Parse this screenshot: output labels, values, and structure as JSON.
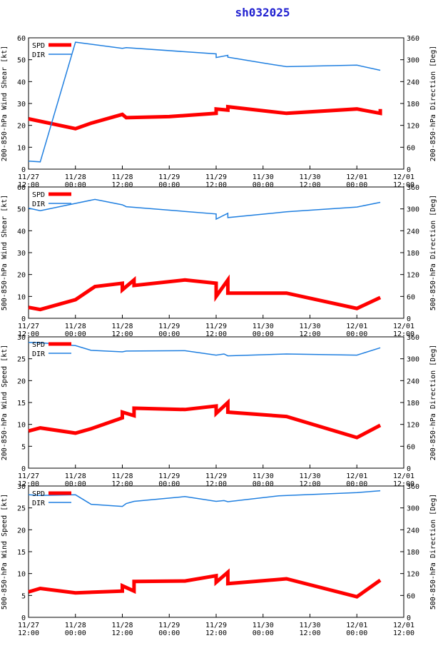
{
  "title": "sh032025",
  "colors": {
    "spd": "#ff0000",
    "dir": "#1f7fe0",
    "axis": "#000000",
    "title": "#1f1fd0"
  },
  "x_ticks": [
    [
      "11/27",
      "12:00"
    ],
    [
      "11/28",
      "00:00"
    ],
    [
      "11/28",
      "12:00"
    ],
    [
      "11/29",
      "00:00"
    ],
    [
      "11/29",
      "12:00"
    ],
    [
      "11/30",
      "00:00"
    ],
    [
      "11/30",
      "12:00"
    ],
    [
      "12/01",
      "00:00"
    ],
    [
      "12/01",
      "12:00"
    ]
  ],
  "legend": {
    "spd": "SPD",
    "dir": "DIR"
  },
  "chart_data": [
    {
      "type": "line",
      "ylabel": "200-850-hPa Wind Shear [kt]",
      "y2label": "200-850-hPa Direction [Deg]",
      "ylim": [
        0,
        60
      ],
      "yticks": [
        0,
        10,
        20,
        30,
        40,
        50,
        60
      ],
      "y2lim": [
        0,
        360
      ],
      "y2ticks": [
        0,
        60,
        120,
        180,
        240,
        300,
        360
      ],
      "xlim": [
        0,
        96
      ],
      "series": [
        {
          "name": "SPD",
          "axis": "left",
          "x": [
            0,
            12,
            16,
            24,
            25,
            36,
            48,
            48,
            51,
            51,
            66,
            84,
            90,
            90
          ],
          "y": [
            23,
            18.5,
            21,
            25,
            23.5,
            24,
            25.5,
            27.5,
            27,
            28.5,
            25.5,
            27.5,
            25.5,
            27.5
          ]
        },
        {
          "name": "DIR",
          "axis": "right",
          "x": [
            0,
            3,
            12,
            24,
            25,
            48,
            48,
            51,
            51,
            60,
            66,
            84,
            90
          ],
          "y": [
            22,
            20,
            348,
            331,
            333,
            316,
            306,
            312,
            307,
            291,
            281,
            285,
            271
          ]
        }
      ]
    },
    {
      "type": "line",
      "ylabel": "500-850-hPa Wind Shear [kt]",
      "y2label": "500-850-hPa Direction [Deg]",
      "ylim": [
        0,
        60
      ],
      "yticks": [
        0,
        10,
        20,
        30,
        40,
        50,
        60
      ],
      "y2lim": [
        0,
        360
      ],
      "y2ticks": [
        0,
        60,
        120,
        180,
        240,
        300,
        360
      ],
      "xlim": [
        0,
        96
      ],
      "series": [
        {
          "name": "SPD",
          "axis": "left",
          "x": [
            0,
            3,
            12,
            17,
            24,
            24,
            27,
            27,
            40,
            48,
            48,
            51,
            51,
            66,
            84,
            90
          ],
          "y": [
            5,
            4,
            8.5,
            14.5,
            16,
            13,
            17.5,
            15,
            17.5,
            16,
            10,
            17.5,
            11.5,
            11.5,
            4.5,
            9.5
          ]
        },
        {
          "name": "DIR",
          "axis": "right",
          "x": [
            0,
            3,
            12,
            17,
            24,
            25,
            48,
            48,
            51,
            51,
            66,
            84,
            90
          ],
          "y": [
            302,
            295,
            315,
            326,
            311,
            306,
            286,
            272,
            288,
            276,
            292,
            305,
            318
          ]
        }
      ]
    },
    {
      "type": "line",
      "ylabel": "200-850-hPa Wind Speed [kt]",
      "y2label": "200-850-hPa Direction [Deg]",
      "ylim": [
        0,
        30
      ],
      "yticks": [
        0,
        5,
        10,
        15,
        20,
        25,
        30
      ],
      "y2lim": [
        0,
        360
      ],
      "y2ticks": [
        0,
        60,
        120,
        180,
        240,
        300,
        360
      ],
      "xlim": [
        0,
        96
      ],
      "series": [
        {
          "name": "SPD",
          "axis": "left",
          "x": [
            0,
            3,
            12,
            16,
            24,
            24,
            27,
            27,
            40,
            48,
            48,
            51,
            51,
            66,
            84,
            90
          ],
          "y": [
            8.5,
            9.2,
            8,
            9,
            11.5,
            12.8,
            12,
            13.7,
            13.4,
            14.2,
            12.5,
            15,
            12.8,
            11.8,
            7,
            9.8
          ]
        },
        {
          "name": "DIR",
          "axis": "right",
          "x": [
            0,
            3,
            12,
            16,
            24,
            25,
            40,
            48,
            50,
            51,
            66,
            84,
            90
          ],
          "y": [
            345,
            344,
            336,
            323,
            319,
            321,
            322,
            310,
            313,
            308,
            313,
            310,
            330
          ]
        }
      ]
    },
    {
      "type": "line",
      "ylabel": "500-850-hPa Wind Speed [kt]",
      "y2label": "500-850-hPa Direction [Deg]",
      "ylim": [
        0,
        30
      ],
      "yticks": [
        0,
        5,
        10,
        15,
        20,
        25,
        30
      ],
      "y2lim": [
        0,
        360
      ],
      "y2ticks": [
        0,
        60,
        120,
        180,
        240,
        300,
        360
      ],
      "xlim": [
        0,
        96
      ],
      "series": [
        {
          "name": "SPD",
          "axis": "left",
          "x": [
            0,
            3,
            12,
            24,
            24,
            27,
            27,
            40,
            48,
            48,
            51,
            51,
            66,
            84,
            90
          ],
          "y": [
            5.8,
            6.6,
            5.6,
            6,
            7.2,
            6,
            8.2,
            8.3,
            9.5,
            8,
            10.3,
            7.7,
            8.8,
            4.7,
            8.5
          ]
        },
        {
          "name": "DIR",
          "axis": "right",
          "x": [
            0,
            3,
            12,
            16,
            24,
            25,
            27,
            40,
            48,
            50,
            51,
            64,
            84,
            90
          ],
          "y": [
            336,
            334,
            336,
            310,
            304,
            312,
            318,
            331,
            318,
            320,
            317,
            333,
            342,
            347
          ]
        }
      ]
    }
  ]
}
